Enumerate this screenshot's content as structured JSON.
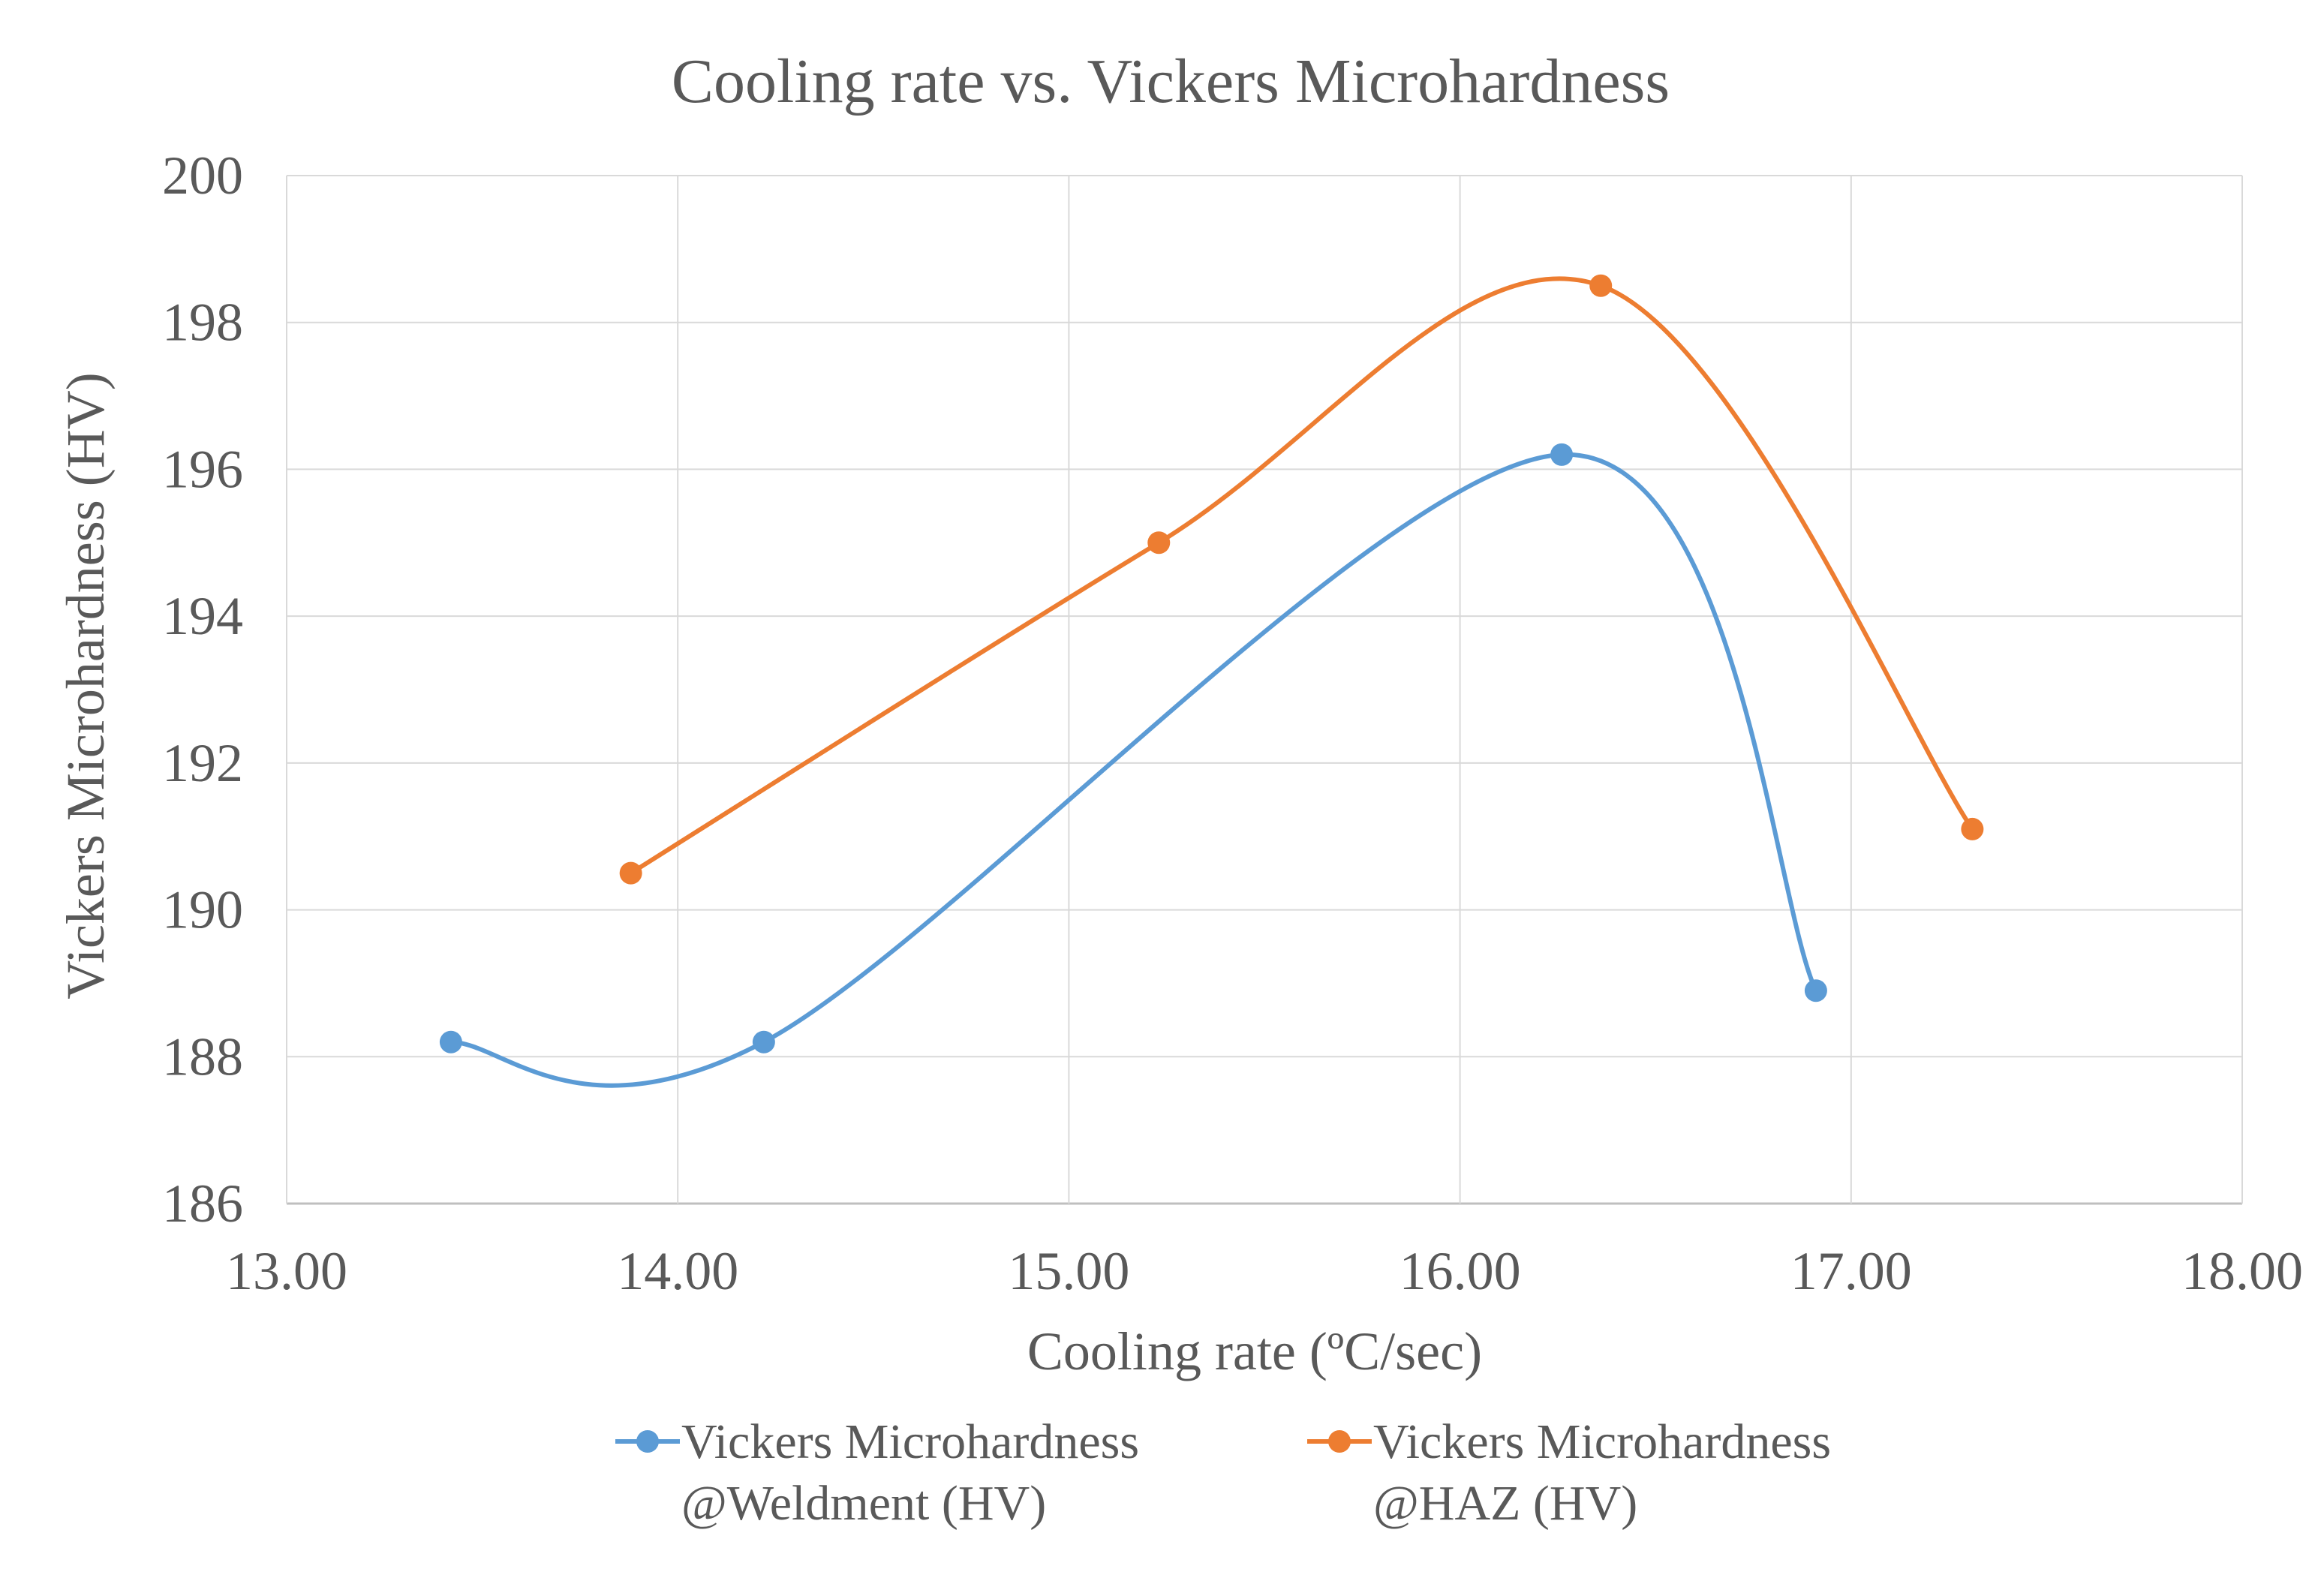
{
  "chart_data": {
    "type": "scatter",
    "title": "Cooling rate vs. Vickers Microhardness",
    "xlabel": "Cooling rate (ºC/sec)",
    "ylabel": "Vickers Microhardness (HV)",
    "xlim": [
      13.0,
      18.0
    ],
    "ylim": [
      186,
      200
    ],
    "xticks": [
      "13.00",
      "14.00",
      "15.00",
      "16.00",
      "17.00",
      "18.00"
    ],
    "yticks": [
      "186",
      "188",
      "190",
      "192",
      "194",
      "196",
      "198",
      "200"
    ],
    "grid": true,
    "smooth_lines": true,
    "legend_position": "bottom",
    "series": [
      {
        "name": "Vickers Microhardness @Weldment (HV)",
        "legend_line1": "Vickers Microhardness",
        "legend_line2": "@Weldment (HV)",
        "color": "#5B9BD5",
        "x": [
          13.42,
          14.22,
          16.26,
          16.91
        ],
        "y": [
          188.2,
          188.2,
          196.2,
          188.9
        ]
      },
      {
        "name": "Vickers Microhardness @HAZ (HV)",
        "legend_line1": "Vickers Microhardness",
        "legend_line2": "@HAZ (HV)",
        "color": "#ED7D31",
        "x": [
          13.88,
          15.23,
          16.36,
          17.31
        ],
        "y": [
          190.5,
          195.0,
          198.5,
          191.1
        ]
      }
    ]
  }
}
